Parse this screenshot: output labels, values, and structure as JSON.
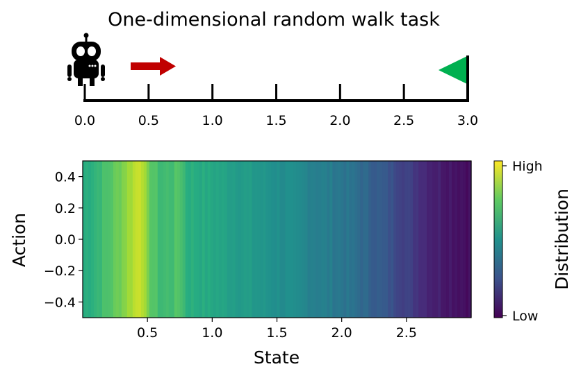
{
  "title": "One-dimensional random walk task",
  "walk": {
    "ticks": [
      "0.0",
      "0.5",
      "1.0",
      "1.5",
      "2.0",
      "2.5",
      "3.0"
    ],
    "robot_icon": "robot-icon",
    "arrow_icon": "right-arrow-icon",
    "flag_icon": "goal-flag-icon",
    "colors": {
      "arrow": "#c00000",
      "flag": "#00b050",
      "axis": "#000000"
    }
  },
  "chart_data": {
    "type": "heatmap",
    "xlabel": "State",
    "ylabel": "Action",
    "xlim": [
      0,
      3.0
    ],
    "ylim": [
      -0.5,
      0.5
    ],
    "xticks": [
      "0.5",
      "1.0",
      "1.5",
      "2.0",
      "2.5"
    ],
    "yticks": [
      "0.4",
      "0.2",
      "0.0",
      "−0.2",
      "−0.4"
    ],
    "colorbar": {
      "label": "Distribution",
      "high_label": "High",
      "low_label": "Low",
      "colormap": "viridis"
    },
    "state_profile": {
      "x": [
        0.0,
        0.1,
        0.2,
        0.3,
        0.4,
        0.45,
        0.5,
        0.6,
        0.7,
        0.75,
        0.8,
        1.0,
        1.2,
        1.5,
        1.8,
        2.0,
        2.2,
        2.5,
        2.7,
        3.0
      ],
      "value": [
        0.62,
        0.66,
        0.72,
        0.8,
        0.9,
        0.95,
        0.78,
        0.68,
        0.7,
        0.74,
        0.64,
        0.6,
        0.56,
        0.5,
        0.44,
        0.4,
        0.33,
        0.2,
        0.1,
        0.04
      ]
    }
  }
}
